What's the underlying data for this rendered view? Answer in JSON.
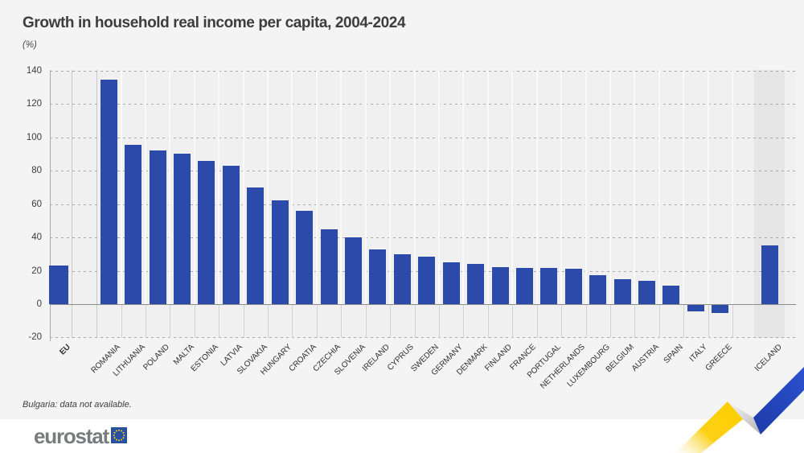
{
  "header": {
    "title": "Growth in household real income per capita, 2004-2024",
    "unit_label": "(%)"
  },
  "chart_data": {
    "type": "bar",
    "title": "Growth in household real income per capita, 2004-2024",
    "unit": "(%)",
    "ylim": [
      -20,
      140
    ],
    "yticks": [
      140,
      120,
      100,
      80,
      60,
      40,
      20,
      0,
      -20
    ],
    "grid": "horizontal-dashed",
    "legend": "none",
    "bar_color": "#2b4aa9",
    "categories": [
      "EU",
      "ROMANIA",
      "LITHUANIA",
      "POLAND",
      "MALTA",
      "ESTONIA",
      "LATVIA",
      "SLOVAKIA",
      "HUNGARY",
      "CROATIA",
      "CZECHIA",
      "SLOVENIA",
      "IRELAND",
      "CYPRUS",
      "SWEDEN",
      "GERMANY",
      "DENMARK",
      "FINLAND",
      "FRANCE",
      "PORTUGAL",
      "NETHERLANDS",
      "LUXEMBOURG",
      "BELGIUM",
      "AUSTRIA",
      "SPAIN",
      "ITALY",
      "GREECE",
      "ICELAND"
    ],
    "values": [
      23,
      134.5,
      95.5,
      92,
      90,
      86,
      83,
      70,
      62,
      56,
      45,
      40,
      33,
      30,
      28.5,
      25,
      24,
      22,
      21.5,
      21.5,
      21,
      17.5,
      15,
      14,
      11,
      -4,
      -5,
      35
    ],
    "emphasized_category": "EU",
    "highlight_band_category": "ICELAND",
    "note": "Bulgaria: data not available."
  },
  "footnote": "Bulgaria: data not available.",
  "footer": {
    "logo_text": "eurostat"
  },
  "colors": {
    "bar_blue": "#2b4aa9",
    "ribbon_yellow": "#fcd00a",
    "ribbon_blue": "#2547c4",
    "ribbon_gray": "#c9c9c9",
    "flag_blue": "#27509f",
    "flag_stars": "#fdd116",
    "logo_gray": "#797b7d",
    "plot_background": "#f0f0f0",
    "highlight_band": "#e6e6e6"
  }
}
